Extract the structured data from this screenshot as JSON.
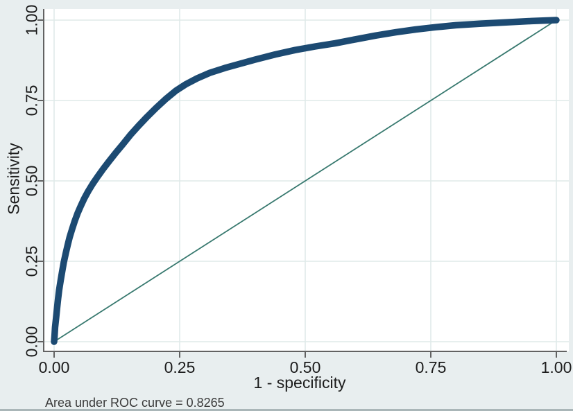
{
  "page": {
    "background": "#e8eeef",
    "caption": "Area under ROC curve = 0.8265"
  },
  "chart_data": {
    "type": "line",
    "title": "",
    "xlabel": "1 - specificity",
    "ylabel": "Sensitivity",
    "xlim": [
      0,
      1
    ],
    "ylim": [
      0,
      1
    ],
    "x_ticks": [
      0,
      0.25,
      0.5,
      0.75,
      1
    ],
    "x_tick_labels": [
      "0.00",
      "0.25",
      "0.50",
      "0.75",
      "1.00"
    ],
    "y_ticks": [
      0,
      0.25,
      0.5,
      0.75,
      1
    ],
    "y_tick_labels": [
      "0.00",
      "0.25",
      "0.50",
      "0.75",
      "1.00"
    ],
    "grid": true,
    "legend": "none",
    "annotation": "Area under ROC curve = 0.8265",
    "auc": 0.8265,
    "colors": {
      "page_bg": "#e8eeef",
      "plot_bg": "#ffffff",
      "grid": "#dfeae9",
      "axis": "#626262",
      "tick_text": "#1c1c1c",
      "caption_text": "#3a3a3a",
      "roc_curve": "#1c4a72",
      "reference_line": "#38796f"
    },
    "series": [
      {
        "name": "ROC curve",
        "color": "#1c4a72",
        "stroke_width": 9.5,
        "points": [
          [
            0,
            0
          ],
          [
            0.001,
            0.02
          ],
          [
            0.002,
            0.045
          ],
          [
            0.004,
            0.075
          ],
          [
            0.006,
            0.105
          ],
          [
            0.008,
            0.135
          ],
          [
            0.01,
            0.16
          ],
          [
            0.013,
            0.19
          ],
          [
            0.016,
            0.218
          ],
          [
            0.019,
            0.245
          ],
          [
            0.023,
            0.274
          ],
          [
            0.027,
            0.3
          ],
          [
            0.031,
            0.325
          ],
          [
            0.036,
            0.351
          ],
          [
            0.041,
            0.375
          ],
          [
            0.047,
            0.4
          ],
          [
            0.053,
            0.422
          ],
          [
            0.06,
            0.445
          ],
          [
            0.068,
            0.468
          ],
          [
            0.077,
            0.491
          ],
          [
            0.087,
            0.514
          ],
          [
            0.098,
            0.538
          ],
          [
            0.11,
            0.562
          ],
          [
            0.123,
            0.588
          ],
          [
            0.137,
            0.614
          ],
          [
            0.152,
            0.643
          ],
          [
            0.168,
            0.671
          ],
          [
            0.185,
            0.699
          ],
          [
            0.203,
            0.727
          ],
          [
            0.222,
            0.754
          ],
          [
            0.243,
            0.781
          ],
          [
            0.263,
            0.801
          ],
          [
            0.285,
            0.819
          ],
          [
            0.31,
            0.836
          ],
          [
            0.34,
            0.851
          ],
          [
            0.37,
            0.864
          ],
          [
            0.4,
            0.877
          ],
          [
            0.44,
            0.893
          ],
          [
            0.48,
            0.907
          ],
          [
            0.52,
            0.918
          ],
          [
            0.56,
            0.928
          ],
          [
            0.6,
            0.94
          ],
          [
            0.64,
            0.952
          ],
          [
            0.68,
            0.962
          ],
          [
            0.72,
            0.971
          ],
          [
            0.76,
            0.978
          ],
          [
            0.8,
            0.984
          ],
          [
            0.85,
            0.989
          ],
          [
            0.9,
            0.993
          ],
          [
            0.95,
            0.997
          ],
          [
            1,
            1
          ]
        ]
      },
      {
        "name": "45-degree reference line",
        "color": "#38796f",
        "stroke_width": 1.8,
        "points": [
          [
            0,
            0
          ],
          [
            1,
            1
          ]
        ]
      }
    ]
  }
}
